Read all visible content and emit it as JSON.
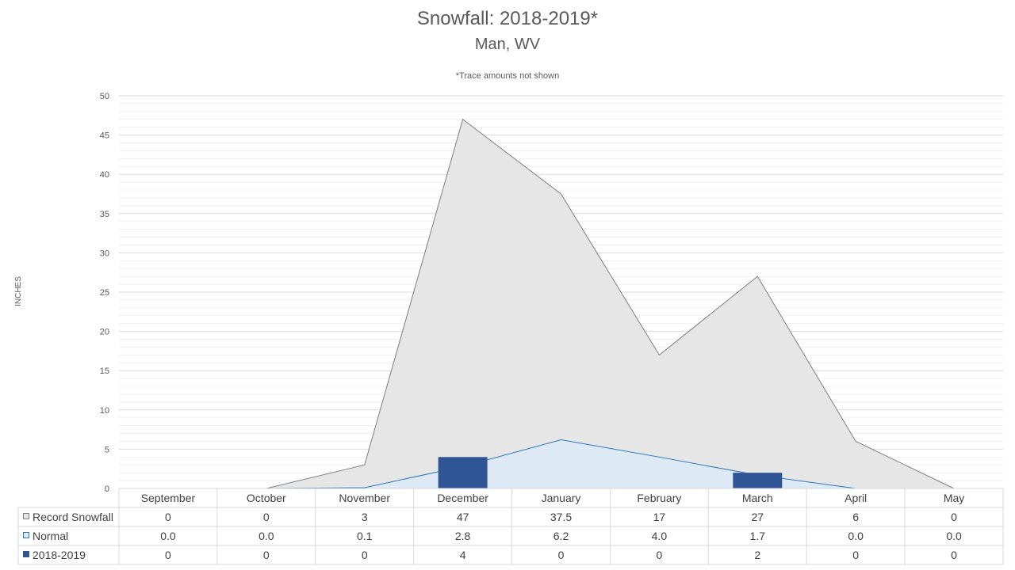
{
  "chart_data": {
    "type": "area",
    "title": "Snowfall: 2018-2019*",
    "subtitle": "Man, WV",
    "note": "*Trace amounts not shown",
    "xlabel": "",
    "ylabel": "INCHES",
    "ylim": [
      0,
      50
    ],
    "y_major_ticks": [
      0,
      5,
      10,
      15,
      20,
      25,
      30,
      35,
      40,
      45,
      50
    ],
    "y_minor_step": 1,
    "grid": true,
    "legend": "data-table",
    "categories": [
      "September",
      "October",
      "November",
      "December",
      "January",
      "February",
      "March",
      "April",
      "May"
    ],
    "series": [
      {
        "name": "Record Snowfall",
        "kind": "area",
        "color": "#e6e6e6",
        "line_color": "#7f7f7f",
        "values": [
          0,
          0,
          3,
          47,
          37.5,
          17,
          27,
          6,
          0
        ],
        "labels": [
          "0",
          "0",
          "3",
          "47",
          "37.5",
          "17",
          "27",
          "6",
          "0"
        ]
      },
      {
        "name": "Normal",
        "kind": "area",
        "color": "#dde9f5",
        "line_color": "#2e75b6",
        "values": [
          0.0,
          0.0,
          0.1,
          2.8,
          6.2,
          4.0,
          1.7,
          0.0,
          0.0
        ],
        "labels": [
          "0.0",
          "0.0",
          "0.1",
          "2.8",
          "6.2",
          "4.0",
          "1.7",
          "0.0",
          "0.0"
        ]
      },
      {
        "name": "2018-2019",
        "kind": "bar",
        "color": "#2f5597",
        "values": [
          0,
          0,
          0,
          4,
          0,
          0,
          2,
          0,
          0
        ],
        "labels": [
          "0",
          "0",
          "0",
          "4",
          "0",
          "0",
          "2",
          "0",
          "0"
        ]
      }
    ]
  }
}
